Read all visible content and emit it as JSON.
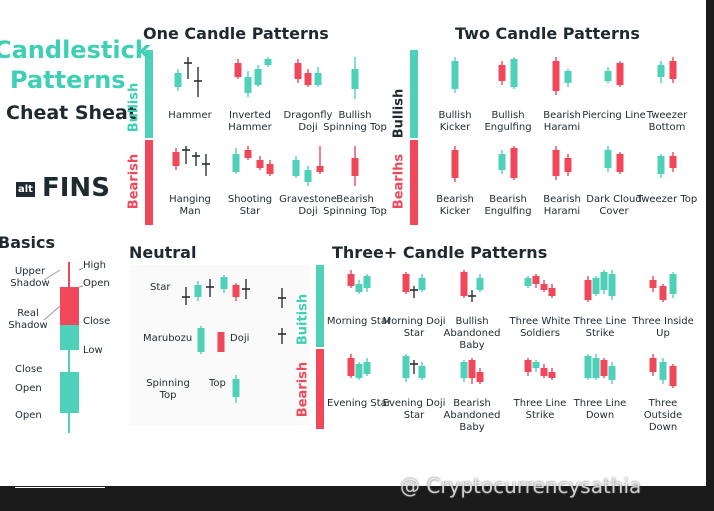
{
  "header": {
    "title_line1": "Candlestick",
    "title_line2": "Patterns",
    "subtitle": "Cheat Sheat",
    "brand_prefix": "alt",
    "brand": "FINS"
  },
  "one_candle": {
    "title": "One Candle Patterns",
    "bullish_label": "Bullish",
    "bearish_label": "Bearish",
    "bullish": [
      "Hammer",
      "Inverted Hammer",
      "Dragonfly Doji",
      "Bullish Spinning Top"
    ],
    "bearish": [
      "Hanging Man",
      "Shooting Star",
      "Gravestone Doji",
      "Bearish Spinning Top"
    ]
  },
  "two_candle": {
    "title": "Two Candle Patterns",
    "bullish_label": "Bullish",
    "bearish_label": "Bearlhs",
    "bullish": [
      "Bullish Kicker",
      "Bullish Engulfing",
      "Bearish Harami",
      "Piercing Line",
      "Tweezer Bottom"
    ],
    "bearish": [
      "Bearish Kicker",
      "Bearish Engulfing",
      "Bearish Harami",
      "Dark Cloud Cover",
      "Tweezer Top"
    ]
  },
  "basics": {
    "title": "Basics",
    "labels": [
      "Upper Shadow",
      "Real Shadow",
      "Close",
      "Open",
      "Open",
      "High",
      "Open",
      "Close",
      "Low"
    ]
  },
  "neutral": {
    "title": "Neutral",
    "labels": [
      "Star",
      "Marubozu",
      "Doji",
      "Spinning Top",
      "Top"
    ]
  },
  "three_candle": {
    "title": "Three+ Candle Patterns",
    "bullish_label": "Buitish",
    "bearish_label": "Bearish",
    "bullish": [
      "Morning Star",
      "Morning Doji Star",
      "Bullish Abandoned Baby",
      "Three White Soldiers",
      "Three Line Strike",
      "Three Inside Up"
    ],
    "bearish": [
      "Evening Star",
      "Evening Doji Star",
      "Bearish Abandoned Baby",
      "Three Line Strike",
      "Three Line Down",
      "Three Outside Down"
    ]
  },
  "watermark": "@ Cryptocurrencysathia"
}
